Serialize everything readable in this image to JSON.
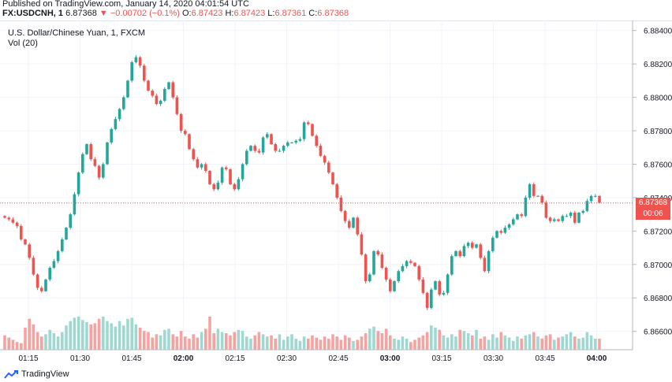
{
  "header": {
    "published": "Published on TradingView.com, January 14, 2020 04:01:54 UTC",
    "symbol": "FX:USDCNH, 1",
    "last_price": "6.87368",
    "change": "−0.00702 (−0.1%)",
    "o_label": "O:",
    "o_value": "6.87423",
    "h_label": "H:",
    "h_value": "6.87423",
    "l_label": "L:",
    "l_value": "6.87361",
    "c_label": "C:",
    "c_value": "6.87368"
  },
  "legend": {
    "title": "U.S. Dollar/Chinese Yuan, 1, FXCM",
    "volume": "Vol (20)"
  },
  "price_tag": {
    "price": "6.87368",
    "countdown": "00:06"
  },
  "footer": {
    "brand": "TradingView"
  },
  "colors": {
    "up": "#26a69a",
    "down": "#ef5350",
    "vol_up": "#9fd8d1",
    "vol_down": "#f5a3a1",
    "grid": "#f0f3fa",
    "text": "#131722"
  },
  "chart_data": {
    "type": "candlestick",
    "title": "U.S. Dollar/Chinese Yuan, 1, FXCM",
    "x_ticks": [
      "01:15",
      "01:30",
      "01:45",
      "02:00",
      "02:15",
      "02:30",
      "02:45",
      "03:00",
      "03:15",
      "03:30",
      "03:45",
      "04:00"
    ],
    "y_ticks": [
      6.884,
      6.882,
      6.88,
      6.878,
      6.876,
      6.874,
      6.872,
      6.87,
      6.868,
      6.866
    ],
    "ylim": [
      6.8649,
      6.8846
    ],
    "last_price": 6.87368,
    "close_path": [
      6.8728,
      6.8727,
      6.8725,
      6.8723,
      6.8715,
      6.8712,
      6.8704,
      6.8694,
      6.8686,
      6.8684,
      6.8691,
      6.8698,
      6.8702,
      6.8708,
      6.8715,
      6.8722,
      6.873,
      6.8742,
      6.8755,
      6.8766,
      6.8772,
      6.8763,
      6.8759,
      6.8752,
      6.876,
      6.8773,
      6.8781,
      6.8787,
      6.8793,
      6.88,
      6.881,
      6.8821,
      6.8824,
      6.8819,
      6.881,
      6.8804,
      6.8801,
      6.8796,
      6.8798,
      6.8805,
      6.8809,
      6.88,
      6.879,
      6.878,
      6.8778,
      6.8769,
      6.8763,
      6.8758,
      6.876,
      6.8756,
      6.8748,
      6.8745,
      6.8749,
      6.8758,
      6.8757,
      6.8748,
      6.8745,
      6.8751,
      6.876,
      6.8768,
      6.8771,
      6.8768,
      6.8767,
      6.8776,
      6.8778,
      6.8772,
      6.8768,
      6.8768,
      6.8771,
      6.8773,
      6.8773,
      6.8774,
      6.8775,
      6.8785,
      6.8784,
      6.8777,
      6.8771,
      6.8765,
      6.8761,
      6.8755,
      6.8748,
      6.874,
      6.8732,
      6.8726,
      6.8722,
      6.8728,
      6.8718,
      6.8706,
      6.869,
      6.8694,
      6.8708,
      6.8706,
      6.8698,
      6.8691,
      6.8684,
      6.869,
      6.8696,
      6.8699,
      6.8702,
      6.8701,
      6.8699,
      6.8691,
      6.8683,
      6.8674,
      6.8685,
      6.869,
      6.8682,
      6.8683,
      6.8694,
      6.8705,
      6.8708,
      6.8705,
      6.8711,
      6.8713,
      6.871,
      6.8712,
      6.8704,
      6.8696,
      6.8708,
      6.8716,
      6.872,
      6.8719,
      6.8722,
      6.8724,
      6.8727,
      6.873,
      6.8729,
      6.874,
      6.8748,
      6.8741,
      6.8741,
      6.8737,
      6.8728,
      6.8726,
      6.8727,
      6.8726,
      6.8729,
      6.8729,
      6.8731,
      6.8725,
      6.8731,
      6.8732,
      6.8738,
      6.8741,
      6.8741,
      6.8737
    ],
    "volume_levels": [
      1.3,
      1.1,
      0.9,
      0.7,
      0.6,
      2.0,
      2.8,
      2.3,
      1.6,
      1.2,
      1.4,
      1.8,
      1.5,
      1.2,
      1.6,
      2.2,
      2.6,
      2.9,
      3.0,
      2.7,
      2.5,
      2.3,
      2.4,
      2.8,
      3.0,
      2.6,
      2.4,
      2.1,
      2.6,
      2.2,
      2.8,
      2.9,
      2.3,
      2.0,
      1.7,
      1.6,
      1.1,
      1.4,
      1.3,
      1.8,
      1.9,
      1.4,
      1.2,
      1.7,
      1.2,
      1.0,
      1.4,
      1.1,
      1.6,
      1.9,
      3.0,
      1.5,
      1.9,
      1.6,
      1.5,
      1.3,
      1.6,
      1.8,
      1.7,
      1.2,
      1.0,
      1.3,
      1.6,
      1.4,
      1.2,
      1.3,
      1.0,
      1.4,
      0.9,
      1.2,
      1.4,
      1.0,
      0.8,
      1.2,
      1.0,
      1.3,
      1.1,
      0.9,
      1.2,
      1.0,
      1.4,
      1.2,
      0.9,
      1.3,
      1.1,
      0.8,
      0.9,
      1.2,
      1.5,
      1.9,
      2.1,
      1.7,
      1.5,
      1.9,
      1.3,
      1.0,
      0.9,
      1.2,
      1.0,
      0.7,
      0.9,
      1.1,
      1.3,
      1.6,
      2.2,
      2.0,
      1.8,
      1.3,
      1.1,
      1.4,
      1.2,
      1.8,
      1.7,
      1.5,
      1.3,
      1.8,
      1.0,
      1.2,
      0.9,
      1.4,
      1.1,
      1.6,
      1.3,
      1.1,
      0.8,
      1.2,
      1.0,
      1.3,
      1.4,
      1.6,
      1.2,
      1.0,
      1.3,
      1.4,
      0.9,
      1.1,
      1.2,
      1.4,
      1.6,
      1.2,
      1.0,
      1.1,
      1.6,
      1.3
    ]
  }
}
